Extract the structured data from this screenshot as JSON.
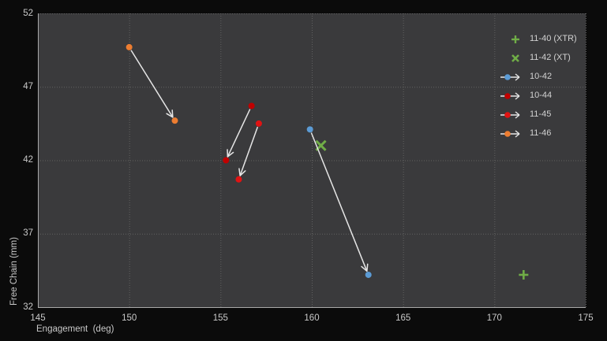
{
  "chart_data": {
    "type": "scatter",
    "title": "",
    "xlabel": "Engagement  (deg)",
    "ylabel": "Free Chain (mm)",
    "xlim": [
      145,
      175
    ],
    "ylim": [
      32,
      52
    ],
    "xticks": [
      145,
      150,
      155,
      160,
      165,
      170,
      175
    ],
    "yticks": [
      32,
      37,
      42,
      47,
      52
    ],
    "grid": true,
    "legend_position": "top-right-inside",
    "series": [
      {
        "name": "11-40 (XTR)",
        "marker": "plus",
        "color": "#70AD47",
        "points": [
          [
            171.6,
            34.2
          ]
        ]
      },
      {
        "name": "11-42 (XT)",
        "marker": "x",
        "color": "#70AD47",
        "points": [
          [
            160.5,
            43.0
          ]
        ]
      },
      {
        "name": "10-42",
        "marker": "circle-arrow",
        "color": "#5B9BD5",
        "points": [
          [
            159.9,
            44.1
          ],
          [
            163.1,
            34.2
          ]
        ]
      },
      {
        "name": "10-44",
        "marker": "circle-arrow",
        "color": "#C00000",
        "points": [
          [
            156.7,
            45.7
          ],
          [
            155.3,
            42.0
          ]
        ]
      },
      {
        "name": "11-45",
        "marker": "circle-arrow",
        "color": "#E01313",
        "points": [
          [
            157.1,
            44.5
          ],
          [
            156.0,
            40.7
          ]
        ]
      },
      {
        "name": "11-46",
        "marker": "circle-arrow",
        "color": "#ED7D31",
        "points": [
          [
            150.0,
            49.7
          ],
          [
            152.5,
            44.7
          ]
        ]
      }
    ]
  },
  "colors": {
    "page_bg": "#0B0B0B",
    "plot_bg": "#3A3A3C",
    "grid": "#616161",
    "axis_line": "#A9A9A9",
    "tick_text": "#C9C9C9",
    "legend_text": "#D2D2D2",
    "arrow": "#E6E6E6"
  }
}
